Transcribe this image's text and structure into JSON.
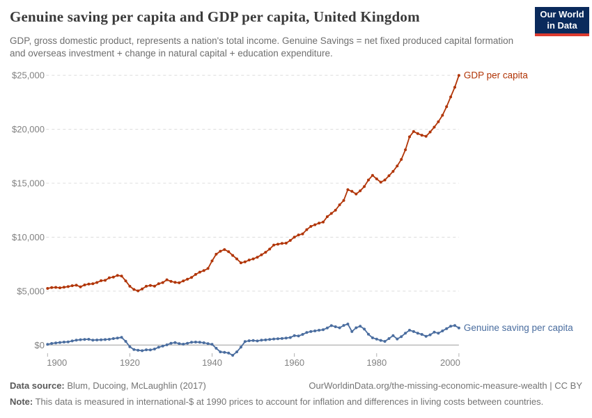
{
  "header": {
    "title": "Genuine saving per capita and GDP per capita, United Kingdom",
    "subtitle": "GDP, gross domestic product, represents a nation's total income. Genuine Savings = net fixed produced capital formation and overseas investment + change in natural capital + education expenditure.",
    "logo": {
      "line1": "Our World",
      "line2": "in Data",
      "bg_color": "#0a2a5c",
      "accent_color": "#dc3a2f"
    }
  },
  "chart_data": {
    "type": "line",
    "title": "Genuine saving per capita and GDP per capita, United Kingdom",
    "xlabel": "",
    "ylabel": "",
    "xlim": [
      1900,
      2000
    ],
    "ylim": [
      -1200,
      25000
    ],
    "grid": "horizontal-dashed",
    "legend_position": "end-of-line-labels",
    "xticks": [
      1900,
      1920,
      1940,
      1960,
      1980,
      2000
    ],
    "yticks": [
      {
        "value": 0,
        "label": "$0"
      },
      {
        "value": 5000,
        "label": "$5,000"
      },
      {
        "value": 10000,
        "label": "$10,000"
      },
      {
        "value": 15000,
        "label": "$15,000"
      },
      {
        "value": 20000,
        "label": "$20,000"
      },
      {
        "value": 25000,
        "label": "$25,000"
      }
    ],
    "axis_colors": {
      "grid": "#dcdcdc",
      "zero_line": "#9e9e9e",
      "tick": "#b0b0b0",
      "tick_label": "#818181"
    },
    "series": [
      {
        "name": "GDP per capita",
        "color": "#b13507",
        "points": [
          [
            1900,
            5250
          ],
          [
            1901,
            5330
          ],
          [
            1902,
            5350
          ],
          [
            1903,
            5310
          ],
          [
            1904,
            5360
          ],
          [
            1905,
            5420
          ],
          [
            1906,
            5500
          ],
          [
            1907,
            5550
          ],
          [
            1908,
            5400
          ],
          [
            1909,
            5570
          ],
          [
            1910,
            5650
          ],
          [
            1911,
            5680
          ],
          [
            1912,
            5800
          ],
          [
            1913,
            5965
          ],
          [
            1914,
            6000
          ],
          [
            1915,
            6230
          ],
          [
            1916,
            6300
          ],
          [
            1917,
            6450
          ],
          [
            1918,
            6400
          ],
          [
            1919,
            5950
          ],
          [
            1920,
            5450
          ],
          [
            1921,
            5150
          ],
          [
            1922,
            5025
          ],
          [
            1923,
            5200
          ],
          [
            1924,
            5450
          ],
          [
            1925,
            5530
          ],
          [
            1926,
            5460
          ],
          [
            1927,
            5680
          ],
          [
            1928,
            5790
          ],
          [
            1929,
            6050
          ],
          [
            1930,
            5900
          ],
          [
            1931,
            5815
          ],
          [
            1932,
            5770
          ],
          [
            1933,
            5945
          ],
          [
            1934,
            6100
          ],
          [
            1935,
            6270
          ],
          [
            1936,
            6545
          ],
          [
            1937,
            6760
          ],
          [
            1938,
            6900
          ],
          [
            1939,
            7100
          ],
          [
            1940,
            7800
          ],
          [
            1941,
            8420
          ],
          [
            1942,
            8700
          ],
          [
            1943,
            8855
          ],
          [
            1944,
            8650
          ],
          [
            1945,
            8310
          ],
          [
            1946,
            7990
          ],
          [
            1947,
            7625
          ],
          [
            1948,
            7710
          ],
          [
            1949,
            7880
          ],
          [
            1950,
            7990
          ],
          [
            1951,
            8145
          ],
          [
            1952,
            8360
          ],
          [
            1953,
            8600
          ],
          [
            1954,
            8900
          ],
          [
            1955,
            9275
          ],
          [
            1956,
            9350
          ],
          [
            1957,
            9420
          ],
          [
            1958,
            9450
          ],
          [
            1959,
            9700
          ],
          [
            1960,
            10000
          ],
          [
            1961,
            10200
          ],
          [
            1962,
            10300
          ],
          [
            1963,
            10700
          ],
          [
            1964,
            11000
          ],
          [
            1965,
            11150
          ],
          [
            1966,
            11300
          ],
          [
            1967,
            11400
          ],
          [
            1968,
            11900
          ],
          [
            1969,
            12200
          ],
          [
            1970,
            12500
          ],
          [
            1971,
            13000
          ],
          [
            1972,
            13400
          ],
          [
            1973,
            14400
          ],
          [
            1974,
            14250
          ],
          [
            1975,
            14000
          ],
          [
            1976,
            14300
          ],
          [
            1977,
            14700
          ],
          [
            1978,
            15300
          ],
          [
            1979,
            15730
          ],
          [
            1980,
            15400
          ],
          [
            1981,
            15100
          ],
          [
            1982,
            15300
          ],
          [
            1983,
            15700
          ],
          [
            1984,
            16100
          ],
          [
            1985,
            16600
          ],
          [
            1986,
            17200
          ],
          [
            1987,
            18100
          ],
          [
            1988,
            19300
          ],
          [
            1989,
            19800
          ],
          [
            1990,
            19600
          ],
          [
            1991,
            19450
          ],
          [
            1992,
            19350
          ],
          [
            1993,
            19750
          ],
          [
            1994,
            20200
          ],
          [
            1995,
            20700
          ],
          [
            1996,
            21300
          ],
          [
            1997,
            22100
          ],
          [
            1998,
            23000
          ],
          [
            1999,
            23900
          ],
          [
            2000,
            25000
          ]
        ]
      },
      {
        "name": "Genuine saving per capita",
        "color": "#4a6d9f",
        "points": [
          [
            1900,
            70
          ],
          [
            1901,
            150
          ],
          [
            1902,
            200
          ],
          [
            1903,
            240
          ],
          [
            1904,
            280
          ],
          [
            1905,
            300
          ],
          [
            1906,
            380
          ],
          [
            1907,
            450
          ],
          [
            1908,
            500
          ],
          [
            1909,
            520
          ],
          [
            1910,
            535
          ],
          [
            1911,
            460
          ],
          [
            1912,
            470
          ],
          [
            1913,
            490
          ],
          [
            1914,
            510
          ],
          [
            1915,
            535
          ],
          [
            1916,
            600
          ],
          [
            1917,
            650
          ],
          [
            1918,
            710
          ],
          [
            1919,
            340
          ],
          [
            1920,
            -160
          ],
          [
            1921,
            -420
          ],
          [
            1922,
            -480
          ],
          [
            1923,
            -520
          ],
          [
            1924,
            -440
          ],
          [
            1925,
            -450
          ],
          [
            1926,
            -370
          ],
          [
            1927,
            -200
          ],
          [
            1928,
            -90
          ],
          [
            1929,
            20
          ],
          [
            1930,
            170
          ],
          [
            1931,
            235
          ],
          [
            1932,
            130
          ],
          [
            1933,
            85
          ],
          [
            1934,
            170
          ],
          [
            1935,
            260
          ],
          [
            1936,
            280
          ],
          [
            1937,
            260
          ],
          [
            1938,
            215
          ],
          [
            1939,
            130
          ],
          [
            1940,
            65
          ],
          [
            1941,
            -300
          ],
          [
            1942,
            -630
          ],
          [
            1943,
            -680
          ],
          [
            1944,
            -740
          ],
          [
            1945,
            -950
          ],
          [
            1946,
            -630
          ],
          [
            1947,
            -195
          ],
          [
            1948,
            320
          ],
          [
            1949,
            400
          ],
          [
            1950,
            420
          ],
          [
            1951,
            380
          ],
          [
            1952,
            450
          ],
          [
            1953,
            480
          ],
          [
            1954,
            520
          ],
          [
            1955,
            560
          ],
          [
            1956,
            590
          ],
          [
            1957,
            610
          ],
          [
            1958,
            650
          ],
          [
            1959,
            700
          ],
          [
            1960,
            880
          ],
          [
            1961,
            840
          ],
          [
            1962,
            990
          ],
          [
            1963,
            1160
          ],
          [
            1964,
            1250
          ],
          [
            1965,
            1310
          ],
          [
            1966,
            1375
          ],
          [
            1967,
            1420
          ],
          [
            1968,
            1590
          ],
          [
            1969,
            1800
          ],
          [
            1970,
            1700
          ],
          [
            1971,
            1600
          ],
          [
            1972,
            1820
          ],
          [
            1973,
            1950
          ],
          [
            1974,
            1250
          ],
          [
            1975,
            1600
          ],
          [
            1976,
            1750
          ],
          [
            1977,
            1480
          ],
          [
            1978,
            1000
          ],
          [
            1979,
            670
          ],
          [
            1980,
            550
          ],
          [
            1981,
            430
          ],
          [
            1982,
            340
          ],
          [
            1983,
            600
          ],
          [
            1984,
            880
          ],
          [
            1985,
            560
          ],
          [
            1986,
            780
          ],
          [
            1987,
            1100
          ],
          [
            1988,
            1375
          ],
          [
            1989,
            1250
          ],
          [
            1990,
            1100
          ],
          [
            1991,
            990
          ],
          [
            1992,
            815
          ],
          [
            1993,
            950
          ],
          [
            1994,
            1200
          ],
          [
            1995,
            1100
          ],
          [
            1996,
            1310
          ],
          [
            1997,
            1525
          ],
          [
            1998,
            1745
          ],
          [
            1999,
            1810
          ],
          [
            2000,
            1590
          ]
        ]
      }
    ]
  },
  "footer": {
    "data_source_label": "Data source:",
    "data_source": "Blum, Ducoing, McLaughlin (2017)",
    "link": "OurWorldinData.org/the-missing-economic-measure-wealth",
    "separator": " | ",
    "license": "CC BY",
    "note_label": "Note:",
    "note": "This data is measured in international-$ at 1990 prices to account for inflation and differences in living costs between countries."
  }
}
